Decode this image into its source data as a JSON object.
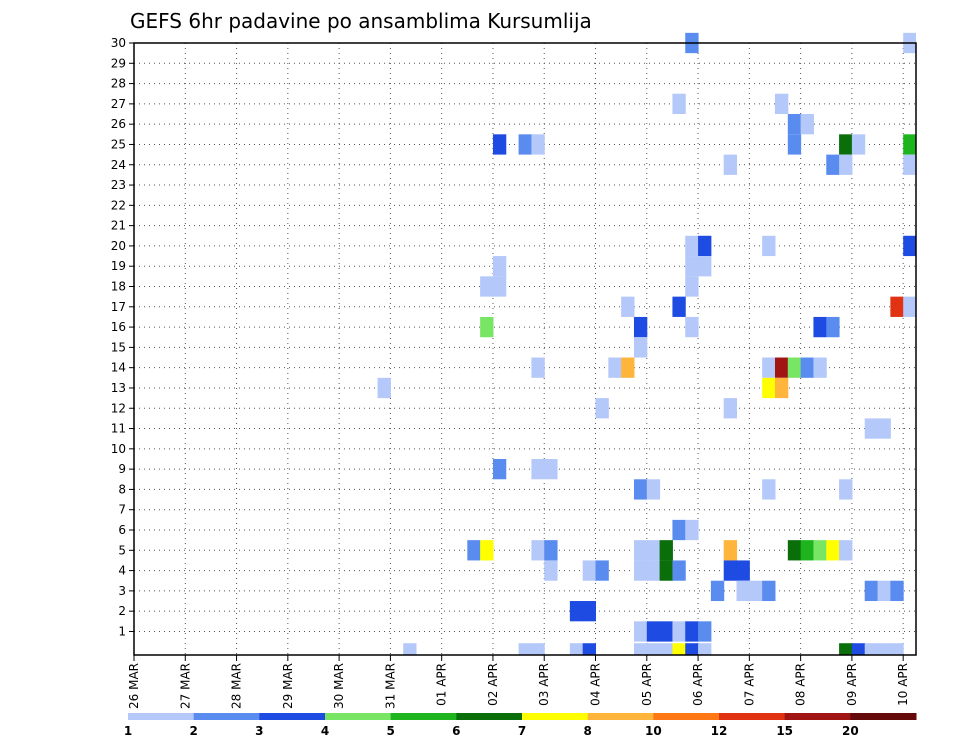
{
  "chart_data": {
    "type": "heatmap",
    "title": "GEFS 6hr padavine po ansamblima Kursumlija",
    "x_tick_labels": [
      "26 MAR",
      "27 MAR",
      "28 MAR",
      "29 MAR",
      "30 MAR",
      "31 MAR",
      "01 APR",
      "02 APR",
      "03 APR",
      "04 APR",
      "05 APR",
      "06 APR",
      "07 APR",
      "08 APR",
      "09 APR",
      "10 APR"
    ],
    "y_tick_labels": [
      "1",
      "2",
      "3",
      "4",
      "5",
      "6",
      "7",
      "8",
      "9",
      "10",
      "11",
      "12",
      "13",
      "14",
      "15",
      "16",
      "17",
      "18",
      "19",
      "20",
      "21",
      "22",
      "23",
      "24",
      "25",
      "26",
      "27",
      "28",
      "29",
      "30"
    ],
    "x_range_days": [
      0,
      15
    ],
    "y_range_members": [
      0,
      30
    ],
    "grid": "dotted",
    "legend": {
      "placement": "bottom",
      "levels": [
        "1",
        "2",
        "3",
        "4",
        "5",
        "6",
        "7",
        "8",
        "10",
        "12",
        "15",
        "20"
      ],
      "colors": [
        "#b4c8fa",
        "#5a8cf0",
        "#1e4be1",
        "#78e664",
        "#1eb41e",
        "#0a6e0a",
        "#ffff00",
        "#ffb43c",
        "#ff7814",
        "#e13214",
        "#a01414",
        "#640a0a"
      ]
    },
    "cells": [
      {
        "member": 30,
        "day": 10.75,
        "class": 2
      },
      {
        "member": 30,
        "day": 15.0,
        "class": 1
      },
      {
        "member": 27,
        "day": 10.5,
        "class": 1
      },
      {
        "member": 27,
        "day": 12.5,
        "class": 1
      },
      {
        "member": 26,
        "day": 12.75,
        "class": 2
      },
      {
        "member": 26,
        "day": 13.0,
        "class": 1
      },
      {
        "member": 25,
        "day": 7.0,
        "class": 3
      },
      {
        "member": 25,
        "day": 7.5,
        "class": 2
      },
      {
        "member": 25,
        "day": 7.75,
        "class": 1
      },
      {
        "member": 25,
        "day": 12.75,
        "class": 2
      },
      {
        "member": 25,
        "day": 13.75,
        "class": 6
      },
      {
        "member": 25,
        "day": 14.0,
        "class": 1
      },
      {
        "member": 25,
        "day": 15.0,
        "class": 5
      },
      {
        "member": 24,
        "day": 11.5,
        "class": 1
      },
      {
        "member": 24,
        "day": 13.5,
        "class": 2
      },
      {
        "member": 24,
        "day": 13.75,
        "class": 1
      },
      {
        "member": 24,
        "day": 15.0,
        "class": 1
      },
      {
        "member": 23,
        "day": 15.25,
        "class": 1
      },
      {
        "member": 22,
        "day": 15.25,
        "class": 1
      },
      {
        "member": 20,
        "day": 10.75,
        "class": 1
      },
      {
        "member": 20,
        "day": 11.0,
        "class": 3
      },
      {
        "member": 20,
        "day": 12.25,
        "class": 1
      },
      {
        "member": 20,
        "day": 15.0,
        "class": 3
      },
      {
        "member": 20,
        "day": 15.25,
        "class": 5
      },
      {
        "member": 19,
        "day": 7.0,
        "class": 1
      },
      {
        "member": 19,
        "day": 10.75,
        "class": 1
      },
      {
        "member": 19,
        "day": 11.0,
        "class": 1
      },
      {
        "member": 18,
        "day": 6.75,
        "class": 1
      },
      {
        "member": 18,
        "day": 7.0,
        "class": 1
      },
      {
        "member": 18,
        "day": 10.75,
        "class": 1
      },
      {
        "member": 17,
        "day": 9.5,
        "class": 1
      },
      {
        "member": 17,
        "day": 10.5,
        "class": 3
      },
      {
        "member": 17,
        "day": 14.75,
        "class": 10
      },
      {
        "member": 17,
        "day": 15.0,
        "class": 1
      },
      {
        "member": 16,
        "day": 6.75,
        "class": 4
      },
      {
        "member": 16,
        "day": 9.75,
        "class": 3
      },
      {
        "member": 16,
        "day": 10.75,
        "class": 1
      },
      {
        "member": 16,
        "day": 13.25,
        "class": 3
      },
      {
        "member": 16,
        "day": 13.5,
        "class": 2
      },
      {
        "member": 15,
        "day": 9.75,
        "class": 1
      },
      {
        "member": 14,
        "day": 7.75,
        "class": 1
      },
      {
        "member": 14,
        "day": 9.25,
        "class": 1
      },
      {
        "member": 14,
        "day": 9.5,
        "class": 8
      },
      {
        "member": 14,
        "day": 12.25,
        "class": 1
      },
      {
        "member": 14,
        "day": 12.5,
        "class": 11
      },
      {
        "member": 14,
        "day": 12.75,
        "class": 4
      },
      {
        "member": 14,
        "day": 13.0,
        "class": 2
      },
      {
        "member": 14,
        "day": 13.25,
        "class": 1
      },
      {
        "member": 13,
        "day": 4.75,
        "class": 1
      },
      {
        "member": 13,
        "day": 12.25,
        "class": 7
      },
      {
        "member": 13,
        "day": 12.5,
        "class": 8
      },
      {
        "member": 12,
        "day": 9.0,
        "class": 1
      },
      {
        "member": 12,
        "day": 11.5,
        "class": 1
      },
      {
        "member": 11,
        "day": 14.25,
        "class": 1
      },
      {
        "member": 11,
        "day": 14.5,
        "class": 1
      },
      {
        "member": 9,
        "day": 7.0,
        "class": 2
      },
      {
        "member": 9,
        "day": 7.75,
        "class": 1
      },
      {
        "member": 9,
        "day": 8.0,
        "class": 1
      },
      {
        "member": 8,
        "day": 9.75,
        "class": 2
      },
      {
        "member": 8,
        "day": 10.0,
        "class": 1
      },
      {
        "member": 8,
        "day": 12.25,
        "class": 1
      },
      {
        "member": 8,
        "day": 13.75,
        "class": 1
      },
      {
        "member": 6,
        "day": 10.5,
        "class": 2
      },
      {
        "member": 6,
        "day": 10.75,
        "class": 1
      },
      {
        "member": 5,
        "day": 6.5,
        "class": 2
      },
      {
        "member": 5,
        "day": 6.75,
        "class": 7
      },
      {
        "member": 5,
        "day": 7.75,
        "class": 1
      },
      {
        "member": 5,
        "day": 8.0,
        "class": 2
      },
      {
        "member": 5,
        "day": 9.75,
        "class": 1
      },
      {
        "member": 5,
        "day": 10.0,
        "class": 1
      },
      {
        "member": 5,
        "day": 10.25,
        "class": 6
      },
      {
        "member": 5,
        "day": 11.5,
        "class": 8
      },
      {
        "member": 5,
        "day": 12.75,
        "class": 6
      },
      {
        "member": 5,
        "day": 13.0,
        "class": 5
      },
      {
        "member": 5,
        "day": 13.25,
        "class": 4
      },
      {
        "member": 5,
        "day": 13.5,
        "class": 7
      },
      {
        "member": 5,
        "day": 13.75,
        "class": 1
      },
      {
        "member": 4,
        "day": 8.0,
        "class": 1
      },
      {
        "member": 4,
        "day": 8.75,
        "class": 1
      },
      {
        "member": 4,
        "day": 9.0,
        "class": 2
      },
      {
        "member": 4,
        "day": 9.75,
        "class": 1
      },
      {
        "member": 4,
        "day": 10.0,
        "class": 1
      },
      {
        "member": 4,
        "day": 10.25,
        "class": 6
      },
      {
        "member": 4,
        "day": 10.5,
        "class": 2
      },
      {
        "member": 4,
        "day": 11.5,
        "class": 3
      },
      {
        "member": 4,
        "day": 11.75,
        "class": 3
      },
      {
        "member": 3,
        "day": 11.25,
        "class": 2
      },
      {
        "member": 3,
        "day": 11.75,
        "class": 1
      },
      {
        "member": 3,
        "day": 12.0,
        "class": 1
      },
      {
        "member": 3,
        "day": 12.25,
        "class": 2
      },
      {
        "member": 3,
        "day": 14.25,
        "class": 2
      },
      {
        "member": 3,
        "day": 14.5,
        "class": 1
      },
      {
        "member": 3,
        "day": 14.75,
        "class": 2
      },
      {
        "member": 2,
        "day": 8.5,
        "class": 3
      },
      {
        "member": 2,
        "day": 8.75,
        "class": 3
      },
      {
        "member": 1,
        "day": 9.75,
        "class": 1
      },
      {
        "member": 1,
        "day": 10.0,
        "class": 3
      },
      {
        "member": 1,
        "day": 10.25,
        "class": 3
      },
      {
        "member": 1,
        "day": 10.5,
        "class": 1
      },
      {
        "member": 1,
        "day": 10.75,
        "class": 3
      },
      {
        "member": 1,
        "day": 11.0,
        "class": 2
      },
      {
        "member": 1,
        "day": 15.25,
        "class": 1
      },
      {
        "member": 0,
        "day": 5.25,
        "class": 1
      },
      {
        "member": 0,
        "day": 7.5,
        "class": 1
      },
      {
        "member": 0,
        "day": 7.75,
        "class": 1
      },
      {
        "member": 0,
        "day": 8.5,
        "class": 1
      },
      {
        "member": 0,
        "day": 8.75,
        "class": 3
      },
      {
        "member": 0,
        "day": 9.75,
        "class": 1
      },
      {
        "member": 0,
        "day": 10.0,
        "class": 1
      },
      {
        "member": 0,
        "day": 10.25,
        "class": 1
      },
      {
        "member": 0,
        "day": 10.5,
        "class": 7
      },
      {
        "member": 0,
        "day": 10.75,
        "class": 3
      },
      {
        "member": 0,
        "day": 11.0,
        "class": 1
      },
      {
        "member": 0,
        "day": 13.75,
        "class": 6
      },
      {
        "member": 0,
        "day": 14.0,
        "class": 3
      },
      {
        "member": 0,
        "day": 14.25,
        "class": 1
      },
      {
        "member": 0,
        "day": 14.5,
        "class": 1
      },
      {
        "member": 0,
        "day": 14.75,
        "class": 1
      }
    ]
  }
}
